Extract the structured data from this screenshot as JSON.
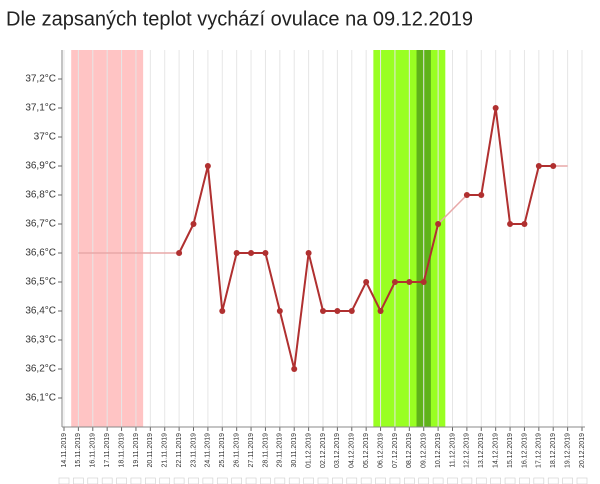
{
  "chart_data": {
    "type": "line",
    "title": "Dle zapsaných teplot vychází ovulace na 09.12.2019",
    "categories": [
      "14.11.2019",
      "15.11.2019",
      "16.11.2019",
      "17.11.2019",
      "18.11.2019",
      "19.11.2019",
      "20.11.2019",
      "21.11.2019",
      "22.11.2019",
      "23.11.2019",
      "24.11.2019",
      "25.11.2019",
      "26.11.2019",
      "27.11.2019",
      "28.11.2019",
      "29.11.2019",
      "30.11.2019",
      "01.12.2019",
      "02.12.2019",
      "03.12.2019",
      "04.12.2019",
      "05.12.2019",
      "06.12.2019",
      "07.12.2019",
      "08.12.2019",
      "09.12.2019",
      "10.12.2019",
      "11.12.2019",
      "12.12.2019",
      "13.12.2019",
      "14.12.2019",
      "15.12.2019",
      "16.12.2019",
      "17.12.2019",
      "18.12.2019",
      "19.12.2019",
      "20.12.2019"
    ],
    "series": [
      {
        "color": "#b03030",
        "values": [
          null,
          null,
          null,
          null,
          null,
          null,
          null,
          null,
          36.6,
          36.7,
          36.9,
          36.4,
          36.6,
          36.6,
          36.6,
          36.4,
          36.2,
          36.6,
          36.4,
          36.4,
          36.4,
          36.5,
          36.4,
          36.5,
          36.5,
          36.5,
          36.7,
          null,
          36.8,
          36.8,
          37.1,
          36.7,
          36.7,
          36.9,
          36.9,
          null,
          null
        ]
      }
    ],
    "connector_color": "#e8a8a8",
    "bands": [
      {
        "from": "15.11.2019",
        "to": "19.11.2019",
        "color": "#ffc4c4"
      },
      {
        "from": "06.12.2019",
        "to": "10.12.2019",
        "color": "#99ff22"
      },
      {
        "from": "09.12.2019",
        "to": "09.12.2019",
        "color": "#5fb31a"
      }
    ],
    "ylim": [
      36.0,
      37.3
    ],
    "yticks": [
      {
        "value": 36.1,
        "label": "36,1°C"
      },
      {
        "value": 36.2,
        "label": "36,2°C"
      },
      {
        "value": 36.3,
        "label": "36,3°C"
      },
      {
        "value": 36.4,
        "label": "36,4°C"
      },
      {
        "value": 36.5,
        "label": "36,5°C"
      },
      {
        "value": 36.6,
        "label": "36,6°C"
      },
      {
        "value": 36.7,
        "label": "36,7°C"
      },
      {
        "value": 36.8,
        "label": "36,8°C"
      },
      {
        "value": 36.9,
        "label": "36,9°C"
      },
      {
        "value": 37.0,
        "label": "37°C"
      },
      {
        "value": 37.1,
        "label": "37,1°C"
      },
      {
        "value": 37.2,
        "label": "37,2°C"
      }
    ],
    "grid": true
  }
}
